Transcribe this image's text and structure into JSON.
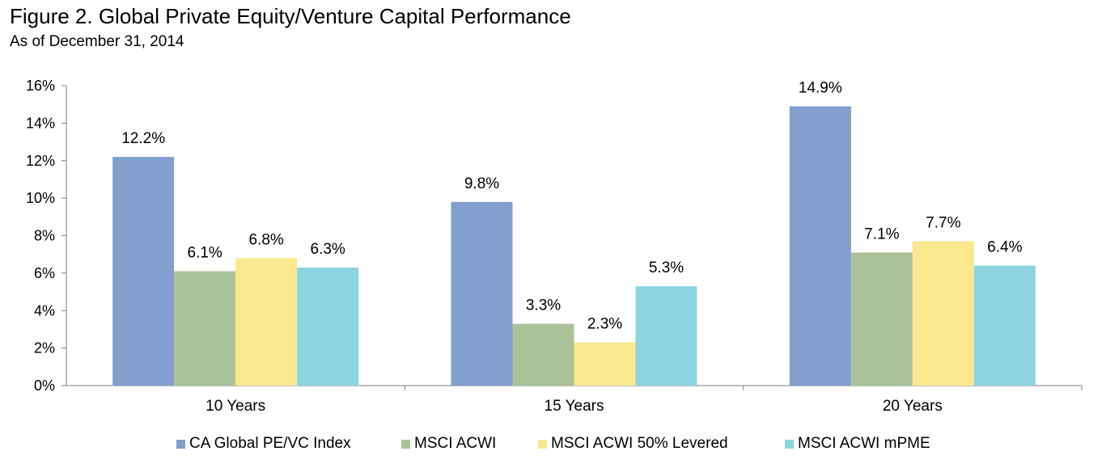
{
  "title": "Figure 2. Global Private Equity/Venture Capital Performance",
  "subtitle": "As of December 31, 2014",
  "chart_data": {
    "type": "bar",
    "categories": [
      "10 Years",
      "15 Years",
      "20 Years"
    ],
    "series": [
      {
        "name": "CA Global PE/VC Index",
        "values": [
          12.2,
          9.8,
          14.9
        ],
        "labels": [
          "12.2%",
          "9.8%",
          "14.9%"
        ],
        "color": "#829fcd"
      },
      {
        "name": "MSCI ACWI",
        "values": [
          6.1,
          3.3,
          7.1
        ],
        "labels": [
          "6.1%",
          "3.3%",
          "7.1%"
        ],
        "color": "#acc39a"
      },
      {
        "name": "MSCI ACWI 50% Levered",
        "values": [
          6.8,
          2.3,
          7.7
        ],
        "labels": [
          "6.8%",
          "2.3%",
          "7.7%"
        ],
        "color": "#fae88e"
      },
      {
        "name": "MSCI ACWI mPME",
        "values": [
          6.3,
          5.3,
          6.4
        ],
        "labels": [
          "6.3%",
          "5.3%",
          "6.4%"
        ],
        "color": "#8cd4df"
      }
    ],
    "ylim": [
      0,
      16
    ],
    "yticks": [
      "0%",
      "2%",
      "4%",
      "6%",
      "8%",
      "10%",
      "12%",
      "14%",
      "16%"
    ],
    "grid": false,
    "legend_position": "bottom"
  }
}
